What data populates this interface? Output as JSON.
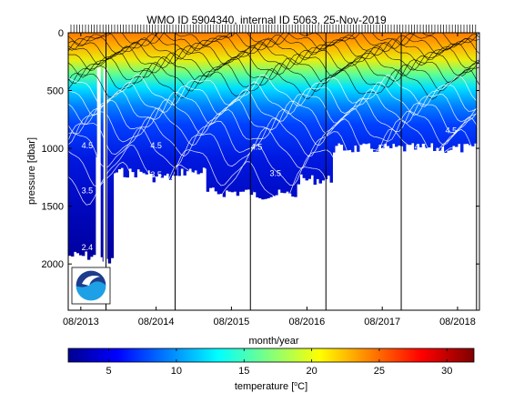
{
  "chart_data": {
    "type": "heatmap",
    "title": "WMO ID 5904340, internal ID 5063, 25-Nov-2019",
    "xlabel": "month/year",
    "ylabel": "pressure [dbar]",
    "x_ticks": [
      "08/2013",
      "08/2014",
      "08/2015",
      "08/2016",
      "08/2017",
      "08/2018"
    ],
    "y_ticks": [
      0,
      500,
      1000,
      1500,
      2000
    ],
    "ylim": [
      0,
      2400
    ],
    "y_inverted": true,
    "grid": false,
    "colorbar": {
      "label": "temperature [",
      "label_unit": "C]",
      "label_degree": "o",
      "ticks": [
        5,
        10,
        15,
        20,
        25,
        30
      ],
      "range": [
        2,
        32
      ],
      "colormap": "jet"
    },
    "contour_labels": [
      {
        "text": "4.5",
        "date": "2013-09",
        "p": 1000
      },
      {
        "text": "3.5",
        "date": "2013-09",
        "p": 1390
      },
      {
        "text": "2.4",
        "date": "2013-09",
        "p": 1880
      },
      {
        "text": "4.5",
        "date": "2014-08",
        "p": 1000
      },
      {
        "text": "3.5",
        "date": "2014-08",
        "p": 1250
      },
      {
        "text": "4.5",
        "date": "2015-12",
        "p": 1010
      },
      {
        "text": "3.5",
        "date": "2016-03",
        "p": 1240
      },
      {
        "text": "4.5",
        "date": "2018-02",
        "p": 1010
      },
      {
        "text": "4.5",
        "date": "2018-07",
        "p": 870
      }
    ],
    "series": [
      {
        "segment_start": "2013-06",
        "segment_end": "2013-10",
        "max_pressure": 1930
      },
      {
        "segment_start": "2013-10",
        "segment_end": "2013-11",
        "max_pressure": 1050
      },
      {
        "segment_start": "2013-11",
        "segment_end": "2014-01",
        "max_pressure": 1980
      },
      {
        "segment_start": "2014-01",
        "segment_end": "2014-07",
        "max_pressure": 1210
      },
      {
        "segment_start": "2014-07",
        "segment_end": "2014-11",
        "max_pressure": 1250
      },
      {
        "segment_start": "2014-11",
        "segment_end": "2015-04",
        "max_pressure": 1200
      },
      {
        "segment_start": "2015-04",
        "segment_end": "2015-11",
        "max_pressure": 1380
      },
      {
        "segment_start": "2015-11",
        "segment_end": "2016-06",
        "max_pressure": 1400
      },
      {
        "segment_start": "2016-06",
        "segment_end": "2016-12",
        "max_pressure": 1270
      },
      {
        "segment_start": "2016-12",
        "segment_end": "2018-11",
        "max_pressure": 1000
      }
    ],
    "surface_temperature_range": [
      20,
      29
    ],
    "deep_temperature_range": [
      2.4,
      5
    ]
  },
  "logo": {
    "text": "NOAA"
  }
}
